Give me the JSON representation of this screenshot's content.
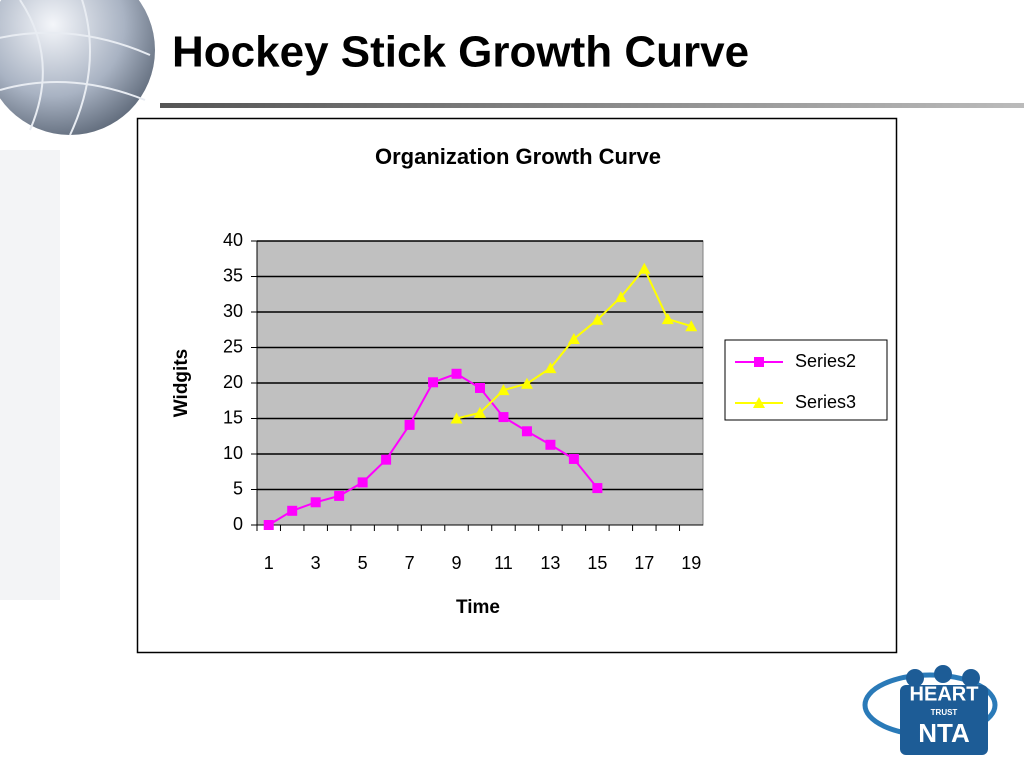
{
  "slide_title": "Hockey Stick Growth Curve",
  "logo": {
    "name": "HEART",
    "sub": "TRUST",
    "mark": "NTA"
  },
  "chart_data": {
    "type": "line",
    "title": "Organization Growth Curve",
    "x_label": "Time",
    "y_label": "Widgits",
    "categories": [
      "1",
      null,
      "3",
      null,
      "5",
      null,
      "7",
      null,
      "9",
      null,
      "11",
      null,
      "13",
      null,
      "15",
      null,
      "17",
      null,
      "19"
    ],
    "series": [
      {
        "name": "Series2",
        "color": "#ff00ff",
        "marker": "square",
        "values": [
          0,
          2,
          3.2,
          4.1,
          6,
          9.2,
          14.1,
          20.1,
          21.3,
          19.3,
          15.2,
          13.2,
          11.3,
          9.3,
          5.2,
          null,
          null,
          null,
          null
        ]
      },
      {
        "name": "Series3",
        "color": "#ffff00",
        "marker": "triangle",
        "values": [
          null,
          null,
          null,
          null,
          null,
          null,
          null,
          null,
          15,
          15.8,
          19,
          19.9,
          22.1,
          26.2,
          28.9,
          32.1,
          36.1,
          29,
          28
        ]
      }
    ],
    "ylim": [
      0,
      40
    ],
    "yticks": [
      0,
      5,
      10,
      15,
      20,
      25,
      30,
      35,
      40
    ],
    "grid": true,
    "plot_background": "#c0c0c0",
    "legend": "right"
  }
}
